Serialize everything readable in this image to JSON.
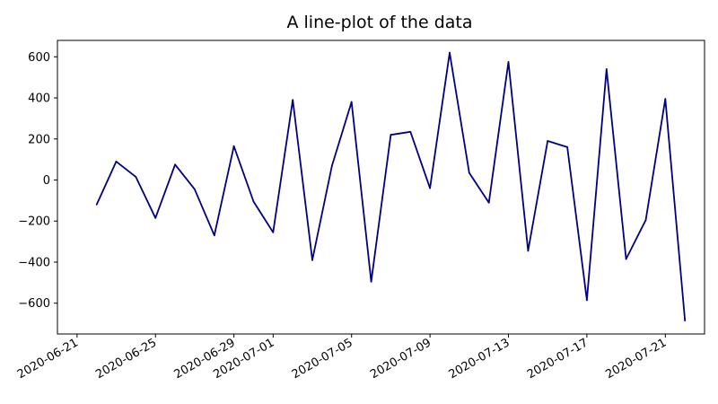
{
  "chart_data": {
    "type": "line",
    "title": "A line-plot of the data",
    "xlabel": "",
    "ylabel": "",
    "x_type": "date",
    "xlim": [
      "2020-06-20",
      "2020-07-23"
    ],
    "ylim": [
      -750,
      680
    ],
    "x_ticks": [
      "2020-06-21",
      "2020-06-25",
      "2020-06-29",
      "2020-07-01",
      "2020-07-05",
      "2020-07-09",
      "2020-07-13",
      "2020-07-17",
      "2020-07-21"
    ],
    "y_ticks": [
      -600,
      -400,
      -200,
      0,
      200,
      400,
      600
    ],
    "y_tick_labels": [
      "−600",
      "−400",
      "−200",
      "0",
      "200",
      "400",
      "600"
    ],
    "grid": false,
    "series": [
      {
        "color": "#000080",
        "x": [
          "2020-06-22",
          "2020-06-23",
          "2020-06-24",
          "2020-06-25",
          "2020-06-26",
          "2020-06-27",
          "2020-06-28",
          "2020-06-29",
          "2020-06-30",
          "2020-07-01",
          "2020-07-02",
          "2020-07-03",
          "2020-07-04",
          "2020-07-05",
          "2020-07-06",
          "2020-07-07",
          "2020-07-08",
          "2020-07-09",
          "2020-07-10",
          "2020-07-11",
          "2020-07-12",
          "2020-07-13",
          "2020-07-14",
          "2020-07-15",
          "2020-07-16",
          "2020-07-17",
          "2020-07-18",
          "2020-07-19",
          "2020-07-20",
          "2020-07-21",
          "2020-07-22"
        ],
        "values": [
          -120,
          90,
          15,
          -185,
          75,
          -45,
          -270,
          165,
          -105,
          -255,
          390,
          -390,
          70,
          380,
          -495,
          220,
          235,
          -40,
          620,
          35,
          -110,
          575,
          -345,
          190,
          160,
          -585,
          540,
          -385,
          -195,
          395,
          -685
        ]
      }
    ]
  }
}
